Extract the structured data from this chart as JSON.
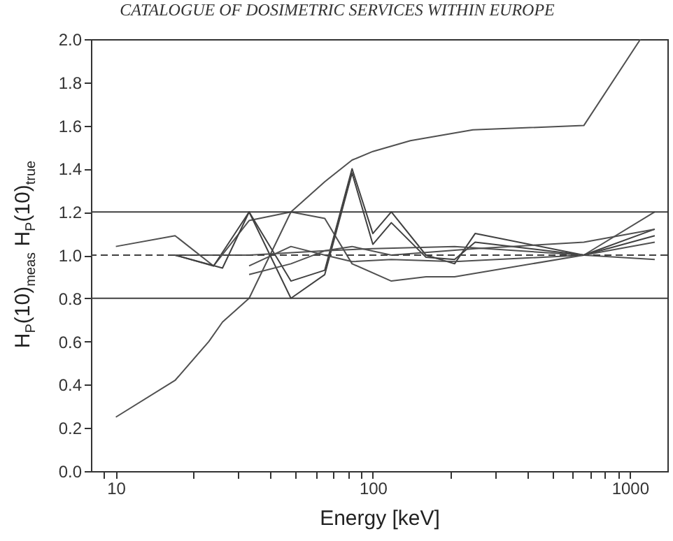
{
  "chart_data": {
    "type": "line",
    "title": "CATALOGUE OF DOSIMETRIC SERVICES WITHIN EUROPE",
    "xlabel": "Energy [keV]",
    "ylabel": "H$_{P}$(10)$_{meas}$ H$_{P}$(10)$_{true}$",
    "log": "x",
    "legend": false,
    "marker": "none",
    "xlim": [
      8,
      1400
    ],
    "ylim": [
      0,
      2
    ],
    "xticks": [
      10,
      100,
      1000,
      {
        "value": 9,
        "label": null
      },
      {
        "value": 20,
        "label": null
      },
      {
        "value": 30,
        "label": null
      },
      {
        "value": 40,
        "label": null
      },
      {
        "value": 50,
        "label": null
      },
      {
        "value": 60,
        "label": null
      },
      {
        "value": 70,
        "label": null
      },
      {
        "value": 80,
        "label": null
      },
      {
        "value": 90,
        "label": null
      },
      {
        "value": 200,
        "label": null
      },
      {
        "value": 300,
        "label": null
      },
      {
        "value": 400,
        "label": null
      },
      {
        "value": 500,
        "label": null
      },
      {
        "value": 600,
        "label": null
      },
      {
        "value": 700,
        "label": null
      },
      {
        "value": 800,
        "label": null
      },
      {
        "value": 900,
        "label": null
      }
    ],
    "yticks": [
      {
        "value": 0,
        "label": "0.0"
      },
      {
        "value": 0.2,
        "label": "0.2"
      },
      {
        "value": 0.4,
        "label": "0.4"
      },
      {
        "value": 0.6,
        "label": "0.6"
      },
      {
        "value": 0.8,
        "label": "0.8"
      },
      {
        "value": 1,
        "label": "1.0"
      },
      {
        "value": 1.2,
        "label": "1.2"
      },
      {
        "value": 1.4,
        "label": "1.4"
      },
      {
        "value": 1.6,
        "label": "1.6"
      },
      {
        "value": 1.8,
        "label": "1.8"
      },
      {
        "value": 2,
        "label": "2.0"
      }
    ],
    "ref_lines": [
      {
        "axis": "y",
        "value": 1.2,
        "color": "#404040",
        "line_style": "solid"
      },
      {
        "axis": "y",
        "value": 0.8,
        "color": "#404040",
        "line_style": "solid"
      },
      {
        "axis": "y",
        "value": 1.0,
        "color": "#404040",
        "line_style": "dashed"
      }
    ],
    "series": [
      {
        "color": "#505050",
        "x": [
          10,
          17,
          23,
          26,
          33,
          48,
          65,
          83,
          100,
          140,
          245,
          662,
          1100
        ],
        "values": [
          0.25,
          0.42,
          0.6,
          0.69,
          0.8,
          1.2,
          1.34,
          1.44,
          1.48,
          1.53,
          1.58,
          1.6,
          2.0
        ]
      },
      {
        "color": "#505050",
        "x": [
          10,
          17,
          24,
          33,
          48,
          65,
          83,
          118,
          161,
          208,
          662,
          1250
        ],
        "values": [
          1.04,
          1.09,
          0.95,
          1.16,
          1.2,
          1.17,
          0.96,
          0.88,
          0.9,
          0.9,
          1.0,
          1.2
        ]
      },
      {
        "color": "#404040",
        "x": [
          17,
          24,
          33,
          48,
          65,
          83,
          100,
          118,
          161,
          208,
          250,
          662,
          1250
        ],
        "values": [
          1.0,
          0.95,
          1.2,
          0.88,
          0.93,
          1.4,
          1.1,
          1.2,
          1.0,
          0.96,
          1.1,
          1.0,
          1.12
        ]
      },
      {
        "color": "#404040",
        "x": [
          17,
          26,
          33,
          48,
          65,
          83,
          100,
          118,
          161,
          208,
          250,
          662,
          1250
        ],
        "values": [
          1.0,
          0.94,
          1.2,
          0.8,
          0.91,
          1.38,
          1.05,
          1.15,
          0.99,
          0.98,
          1.06,
          1.0,
          1.09
        ]
      },
      {
        "color": "#505050",
        "x": [
          33,
          48,
          65,
          83,
          118,
          208,
          662,
          1250
        ],
        "values": [
          0.95,
          1.04,
          1.0,
          0.97,
          0.98,
          0.97,
          1.0,
          1.06
        ]
      },
      {
        "color": "#505050",
        "x": [
          33,
          48,
          65,
          83,
          118,
          250,
          662,
          1250
        ],
        "values": [
          0.91,
          0.96,
          1.02,
          1.04,
          1.0,
          1.03,
          1.06,
          1.12
        ]
      },
      {
        "color": "#505050",
        "x": [
          17,
          33,
          65,
          100,
          208,
          662,
          1250
        ],
        "values": [
          1.0,
          1.0,
          1.02,
          1.03,
          1.04,
          1.0,
          0.98
        ]
      }
    ]
  }
}
